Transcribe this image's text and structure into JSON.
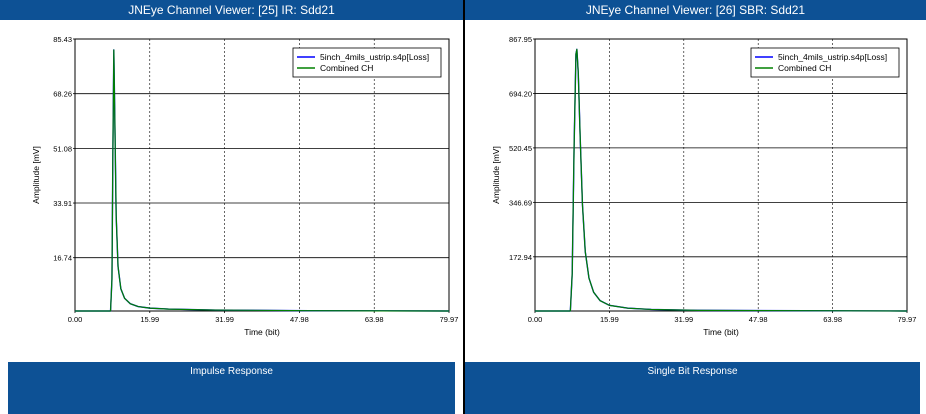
{
  "panels": [
    {
      "window_title": "JNEye Channel Viewer: [25] IR: Sdd21",
      "footer_label": "Impulse Response",
      "chart_data": {
        "type": "line",
        "xlabel": "Time (bit)",
        "ylabel": "Amplitude [mV]",
        "xlim": [
          0,
          79.97
        ],
        "ylim": [
          0,
          85.43
        ],
        "x_ticks": [
          "0.00",
          "15.99",
          "31.99",
          "47.98",
          "63.98",
          "79.97"
        ],
        "y_ticks": [
          "85.43",
          "68.26",
          "51.08",
          "33.91",
          "16.74"
        ],
        "grid": true,
        "legend_position": "top-right",
        "series": [
          {
            "name": "5inch_4mils_ustrip.s4p[Loss]",
            "color": "#0000ff",
            "x": [
              0,
              7.6,
              7.9,
              8.1,
              8.3,
              8.5,
              8.8,
              9.2,
              9.8,
              10.6,
              11.8,
              13.5,
              16,
              20,
              30,
              50,
              79.97
            ],
            "y": [
              0,
              0,
              10,
              50,
              82,
              62,
              30,
              14,
              7,
              4,
              2.3,
              1.4,
              0.9,
              0.6,
              0.3,
              0.1,
              0
            ]
          },
          {
            "name": "Combined CH",
            "color": "#008000",
            "x": [
              0,
              7.6,
              7.9,
              8.1,
              8.3,
              8.5,
              8.8,
              9.2,
              9.8,
              10.6,
              11.8,
              13.5,
              16,
              20,
              30,
              50,
              79.97
            ],
            "y": [
              0,
              0,
              10,
              50,
              82,
              62,
              30,
              14,
              7,
              4,
              2.3,
              1.4,
              0.9,
              0.6,
              0.3,
              0.1,
              0
            ]
          }
        ]
      }
    },
    {
      "window_title": "JNEye Channel Viewer: [26] SBR: Sdd21",
      "footer_label": "Single Bit Response",
      "chart_data": {
        "type": "line",
        "xlabel": "Time (bit)",
        "ylabel": "Amplitude [mV]",
        "xlim": [
          0,
          79.97
        ],
        "ylim": [
          0,
          867.95
        ],
        "x_ticks": [
          "0.00",
          "15.99",
          "31.99",
          "47.98",
          "63.98",
          "79.97"
        ],
        "y_ticks": [
          "867.95",
          "694.20",
          "520.45",
          "346.69",
          "172.94"
        ],
        "grid": true,
        "legend_position": "top-right",
        "series": [
          {
            "name": "5inch_4mils_ustrip.s4p[Loss]",
            "color": "#0000ff",
            "x": [
              0,
              7.6,
              8.0,
              8.4,
              8.8,
              9.0,
              9.3,
              9.7,
              10.2,
              10.8,
              11.6,
              12.6,
              14,
              16,
              20,
              25,
              35,
              79.97
            ],
            "y": [
              0,
              0,
              120,
              520,
              820,
              835,
              760,
              560,
              340,
              190,
              105,
              60,
              33,
              18,
              9,
              5,
              2,
              0
            ]
          },
          {
            "name": "Combined CH",
            "color": "#008000",
            "x": [
              0,
              7.6,
              8.0,
              8.4,
              8.8,
              9.0,
              9.3,
              9.7,
              10.2,
              10.8,
              11.6,
              12.6,
              14,
              16,
              20,
              25,
              35,
              79.97
            ],
            "y": [
              0,
              0,
              120,
              520,
              820,
              835,
              760,
              560,
              340,
              190,
              105,
              60,
              33,
              18,
              9,
              5,
              2,
              0
            ]
          }
        ]
      }
    }
  ]
}
